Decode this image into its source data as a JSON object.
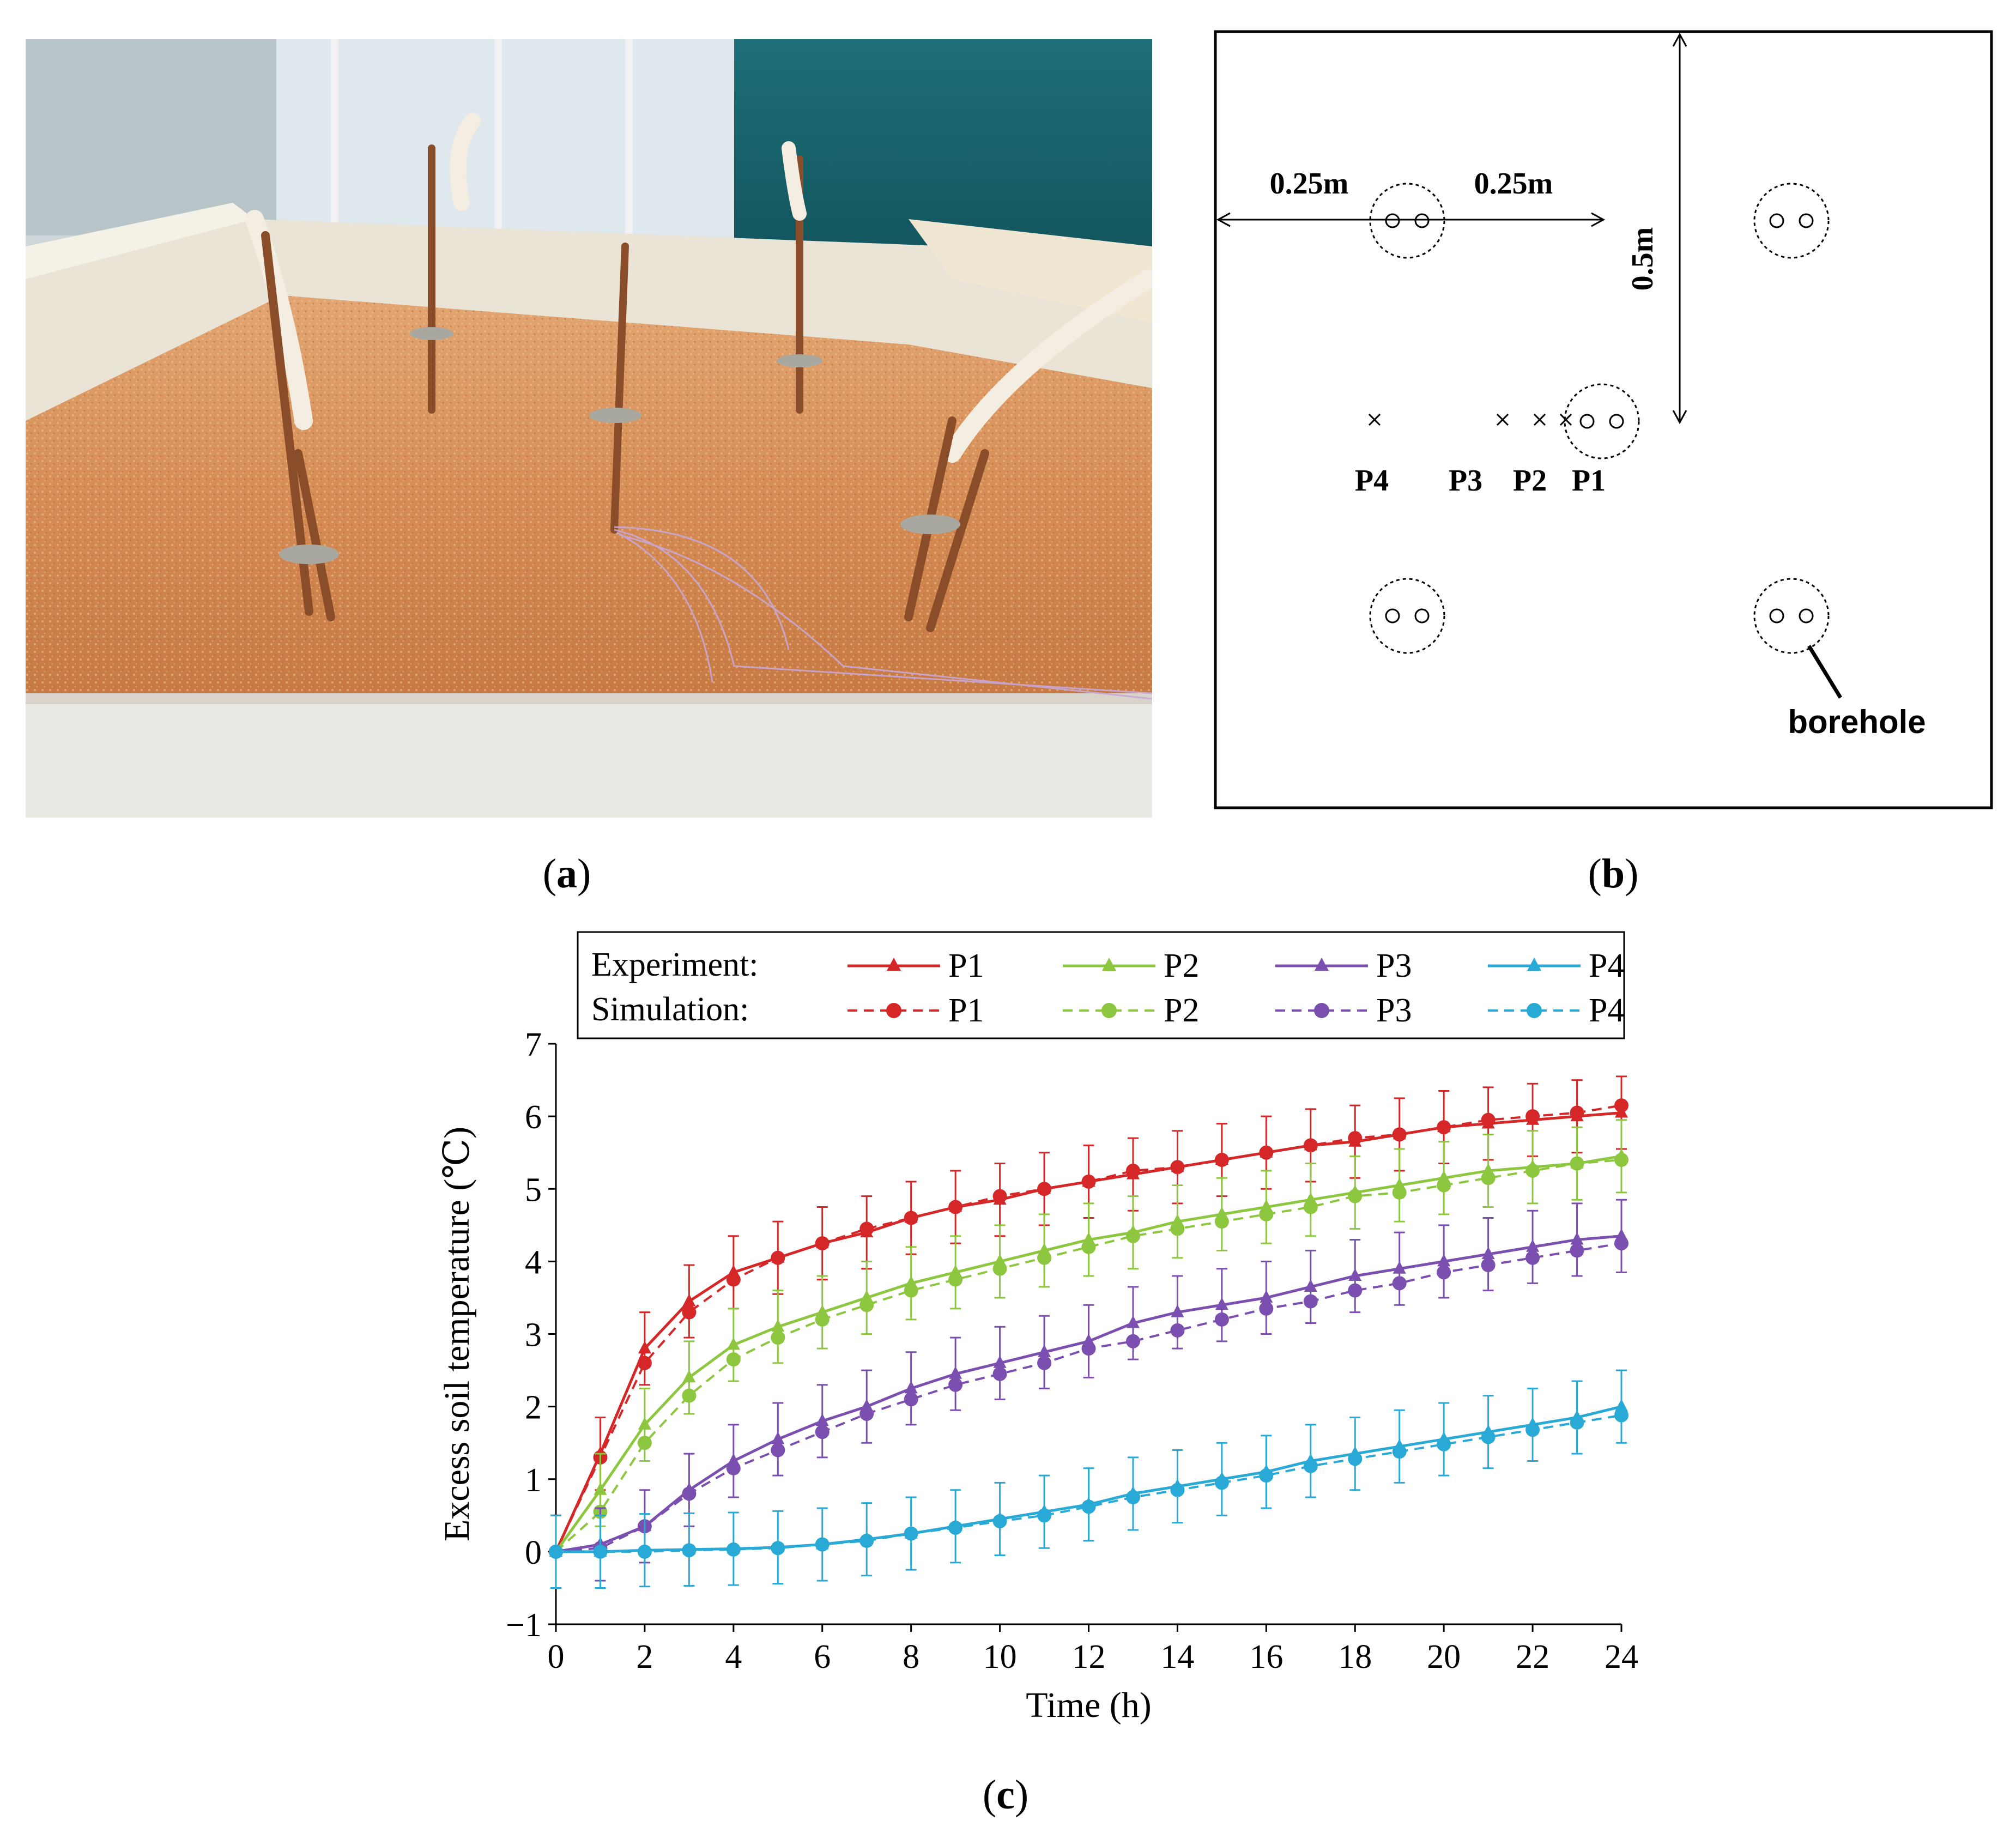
{
  "captions": {
    "a": "a",
    "b": "b",
    "c": "c"
  },
  "layout": {
    "dim_left": "0.25m",
    "dim_right": "0.25m",
    "dim_vertical": "0.5m",
    "points": [
      "P4",
      "P3",
      "P2",
      "P1"
    ],
    "borehole_label": "borehole"
  },
  "chart_data": {
    "type": "line",
    "xlabel": "Time (h)",
    "ylabel": "Excess soil temperature (℃)",
    "xlim": [
      0,
      24
    ],
    "ylim": [
      -1,
      7
    ],
    "xticks": [
      0,
      2,
      4,
      6,
      8,
      10,
      12,
      14,
      16,
      18,
      20,
      22,
      24
    ],
    "yticks": [
      -1,
      0,
      1,
      2,
      3,
      4,
      5,
      6,
      7
    ],
    "ytick_labels": [
      "−1",
      "0",
      "1",
      "2",
      "3",
      "4",
      "5",
      "6",
      "7"
    ],
    "legend": {
      "placement": "top",
      "experiment_label": "Experiment:",
      "simulation_label": "Simulation:"
    },
    "x": [
      0,
      1,
      2,
      3,
      4,
      5,
      6,
      7,
      8,
      9,
      10,
      11,
      12,
      13,
      14,
      15,
      16,
      17,
      18,
      19,
      20,
      21,
      22,
      23,
      24
    ],
    "error_bar": 0.5,
    "series": [
      {
        "name": "P1",
        "color": "#d62728",
        "experiment": [
          0,
          1.35,
          2.8,
          3.45,
          3.85,
          4.05,
          4.25,
          4.4,
          4.6,
          4.75,
          4.85,
          5.0,
          5.1,
          5.2,
          5.3,
          5.4,
          5.5,
          5.6,
          5.65,
          5.75,
          5.85,
          5.9,
          5.95,
          6.0,
          6.05
        ],
        "simulation": [
          0,
          1.3,
          2.6,
          3.3,
          3.75,
          4.05,
          4.25,
          4.45,
          4.6,
          4.75,
          4.9,
          5.0,
          5.1,
          5.25,
          5.3,
          5.4,
          5.5,
          5.6,
          5.7,
          5.75,
          5.85,
          5.95,
          6.0,
          6.05,
          6.15
        ]
      },
      {
        "name": "P2",
        "color": "#8dc63f",
        "experiment": [
          0,
          0.85,
          1.75,
          2.4,
          2.85,
          3.1,
          3.3,
          3.5,
          3.7,
          3.85,
          4.0,
          4.15,
          4.3,
          4.4,
          4.55,
          4.65,
          4.75,
          4.85,
          4.95,
          5.05,
          5.15,
          5.25,
          5.3,
          5.35,
          5.45
        ],
        "simulation": [
          0,
          0.55,
          1.5,
          2.15,
          2.65,
          2.95,
          3.2,
          3.4,
          3.6,
          3.75,
          3.9,
          4.05,
          4.2,
          4.35,
          4.45,
          4.55,
          4.65,
          4.75,
          4.9,
          4.95,
          5.05,
          5.15,
          5.25,
          5.35,
          5.4
        ]
      },
      {
        "name": "P3",
        "color": "#7b4fb0",
        "experiment": [
          0,
          0.1,
          0.35,
          0.85,
          1.25,
          1.55,
          1.8,
          2.0,
          2.25,
          2.45,
          2.6,
          2.75,
          2.9,
          3.15,
          3.3,
          3.4,
          3.5,
          3.65,
          3.8,
          3.9,
          4.0,
          4.1,
          4.2,
          4.3,
          4.35
        ],
        "simulation": [
          0,
          0.05,
          0.35,
          0.8,
          1.15,
          1.4,
          1.65,
          1.9,
          2.1,
          2.3,
          2.45,
          2.6,
          2.8,
          2.9,
          3.05,
          3.2,
          3.35,
          3.45,
          3.6,
          3.7,
          3.85,
          3.95,
          4.05,
          4.15,
          4.25
        ]
      },
      {
        "name": "P4",
        "color": "#29a9d6",
        "experiment": [
          0,
          0.0,
          0.02,
          0.03,
          0.04,
          0.06,
          0.1,
          0.17,
          0.25,
          0.35,
          0.45,
          0.55,
          0.65,
          0.8,
          0.9,
          1.0,
          1.1,
          1.25,
          1.35,
          1.45,
          1.55,
          1.65,
          1.75,
          1.85,
          2.0
        ],
        "simulation": [
          0,
          0.0,
          0.0,
          0.02,
          0.03,
          0.05,
          0.1,
          0.15,
          0.25,
          0.33,
          0.42,
          0.5,
          0.62,
          0.75,
          0.85,
          0.95,
          1.05,
          1.18,
          1.28,
          1.38,
          1.48,
          1.58,
          1.68,
          1.78,
          1.88
        ]
      }
    ]
  }
}
